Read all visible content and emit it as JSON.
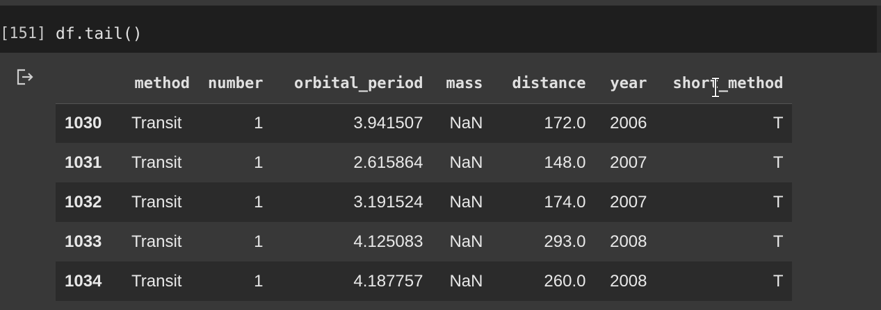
{
  "code_cell": {
    "execution_count": "[151]",
    "source": "df.tail()"
  },
  "output": {
    "icon": "output-redirect-icon",
    "table": {
      "columns": [
        "method",
        "number",
        "orbital_period",
        "mass",
        "distance",
        "year",
        "short_method"
      ],
      "rows": [
        {
          "index": "1030",
          "cells": [
            "Transit",
            "1",
            "3.941507",
            "NaN",
            "172.0",
            "2006",
            "T"
          ]
        },
        {
          "index": "1031",
          "cells": [
            "Transit",
            "1",
            "2.615864",
            "NaN",
            "148.0",
            "2007",
            "T"
          ]
        },
        {
          "index": "1032",
          "cells": [
            "Transit",
            "1",
            "3.191524",
            "NaN",
            "174.0",
            "2007",
            "T"
          ]
        },
        {
          "index": "1033",
          "cells": [
            "Transit",
            "1",
            "4.125083",
            "NaN",
            "293.0",
            "2008",
            "T"
          ]
        },
        {
          "index": "1034",
          "cells": [
            "Transit",
            "1",
            "4.187757",
            "NaN",
            "260.0",
            "2008",
            "T"
          ]
        }
      ]
    }
  },
  "colors": {
    "background": "#383838",
    "code_background": "#1e1e1e",
    "row_stripe": "#2b2b2b",
    "text": "#e8e8e8"
  }
}
